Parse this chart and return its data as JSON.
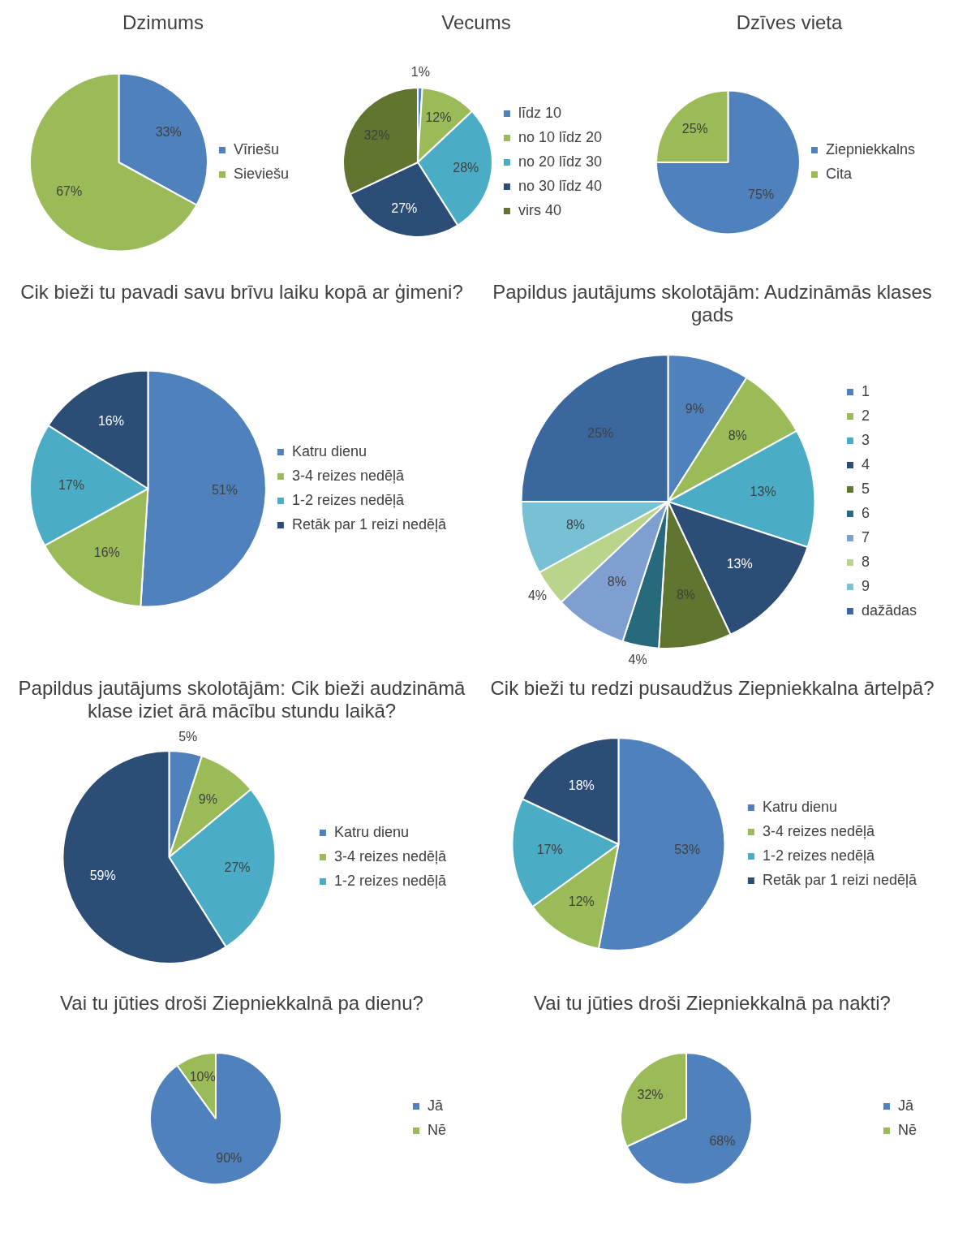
{
  "chart_data": [
    {
      "type": "pie",
      "title": "Dzimums",
      "categories": [
        "Vīriešu",
        "Sieviešu"
      ],
      "values": [
        33,
        67
      ],
      "value_labels": [
        "33%",
        "67%"
      ],
      "colors": [
        "#4f81bd",
        "#9bbb59"
      ],
      "legend": "right"
    },
    {
      "type": "pie",
      "title": "Vecums",
      "categories": [
        "līdz 10",
        "no 10 līdz 20",
        "no 20 līdz 30",
        "no 30 līdz 40",
        "virs 40"
      ],
      "values": [
        1,
        12,
        28,
        27,
        32
      ],
      "value_labels": [
        "1%",
        "12%",
        "28%",
        "27%",
        "32%"
      ],
      "colors": [
        "#4f81bd",
        "#9bbb59",
        "#4bacc6",
        "#2c4d75",
        "#5f7530"
      ],
      "legend": "right"
    },
    {
      "type": "pie",
      "title": "Dzīves vieta",
      "categories": [
        "Ziepniekkalns",
        "Cita"
      ],
      "values": [
        75,
        25
      ],
      "value_labels": [
        "75%",
        "25%"
      ],
      "colors": [
        "#4f81bd",
        "#9bbb59"
      ],
      "legend": "right"
    },
    {
      "type": "pie",
      "title": "Cik bieži tu pavadi savu brīvu laiku kopā ar ģimeni?",
      "categories": [
        "Katru dienu",
        "3-4 reizes nedēļā",
        "1-2 reizes nedēļā",
        "Retāk par 1 reizi nedēļā"
      ],
      "values": [
        51,
        16,
        17,
        16
      ],
      "value_labels": [
        "51%",
        "16%",
        "17%",
        "16%"
      ],
      "colors": [
        "#4f81bd",
        "#9bbb59",
        "#4bacc6",
        "#2c4d75"
      ],
      "legend": "right"
    },
    {
      "type": "pie",
      "title": "Papildus jautājums skolotājām: Audzināmās klases gads",
      "categories": [
        "1",
        "2",
        "3",
        "4",
        "5",
        "6",
        "7",
        "8",
        "9",
        "dažādas"
      ],
      "values": [
        9,
        8,
        13,
        13,
        8,
        4,
        8,
        4,
        8,
        25
      ],
      "value_labels": [
        "9%",
        "8%",
        "13%",
        "13%",
        "8%",
        "4%",
        "8%",
        "4%",
        "8%",
        "25%"
      ],
      "colors": [
        "#4f81bd",
        "#9bbb59",
        "#4bacc6",
        "#2c4d75",
        "#5f7530",
        "#276a7c",
        "#7f9fd1",
        "#b9d48b",
        "#78c1d5",
        "#3a689e"
      ],
      "legend": "right"
    },
    {
      "type": "pie",
      "title": "Papildus jautājums skolotājām: Cik bieži audzināmā klase iziet ārā mācību stundu laikā?",
      "categories": [
        "Katru dienu",
        "3-4 reizes nedēļā",
        "1-2 reizes nedēļā",
        null
      ],
      "values": [
        5,
        9,
        27,
        59
      ],
      "value_labels": [
        "5%",
        "9%",
        "27%",
        "59%"
      ],
      "colors": [
        "#4f81bd",
        "#9bbb59",
        "#4bacc6",
        "#2c4d75"
      ],
      "legend": "right"
    },
    {
      "type": "pie",
      "title": "Cik bieži tu redzi pusaudžus Ziepniekkalna ārtelpā?",
      "categories": [
        "Katru dienu",
        "3-4 reizes nedēļā",
        "1-2 reizes nedēļā",
        "Retāk par 1 reizi nedēļā"
      ],
      "values": [
        53,
        12,
        17,
        18
      ],
      "value_labels": [
        "53%",
        "12%",
        "17%",
        "18%"
      ],
      "colors": [
        "#4f81bd",
        "#9bbb59",
        "#4bacc6",
        "#2c4d75"
      ],
      "legend": "right"
    },
    {
      "type": "pie",
      "title": "Vai tu jūties droši Ziepniekkalnā pa dienu?",
      "categories": [
        "Jā",
        "Nē"
      ],
      "values": [
        90,
        10
      ],
      "value_labels": [
        "90%",
        "10%"
      ],
      "colors": [
        "#4f81bd",
        "#9bbb59"
      ],
      "legend": "right"
    },
    {
      "type": "pie",
      "title": "Vai tu jūties droši Ziepniekkalnā pa nakti?",
      "categories": [
        "Jā",
        "Nē"
      ],
      "values": [
        68,
        32
      ],
      "value_labels": [
        "68%",
        "32%"
      ],
      "colors": [
        "#4f81bd",
        "#9bbb59"
      ],
      "legend": "right"
    }
  ]
}
